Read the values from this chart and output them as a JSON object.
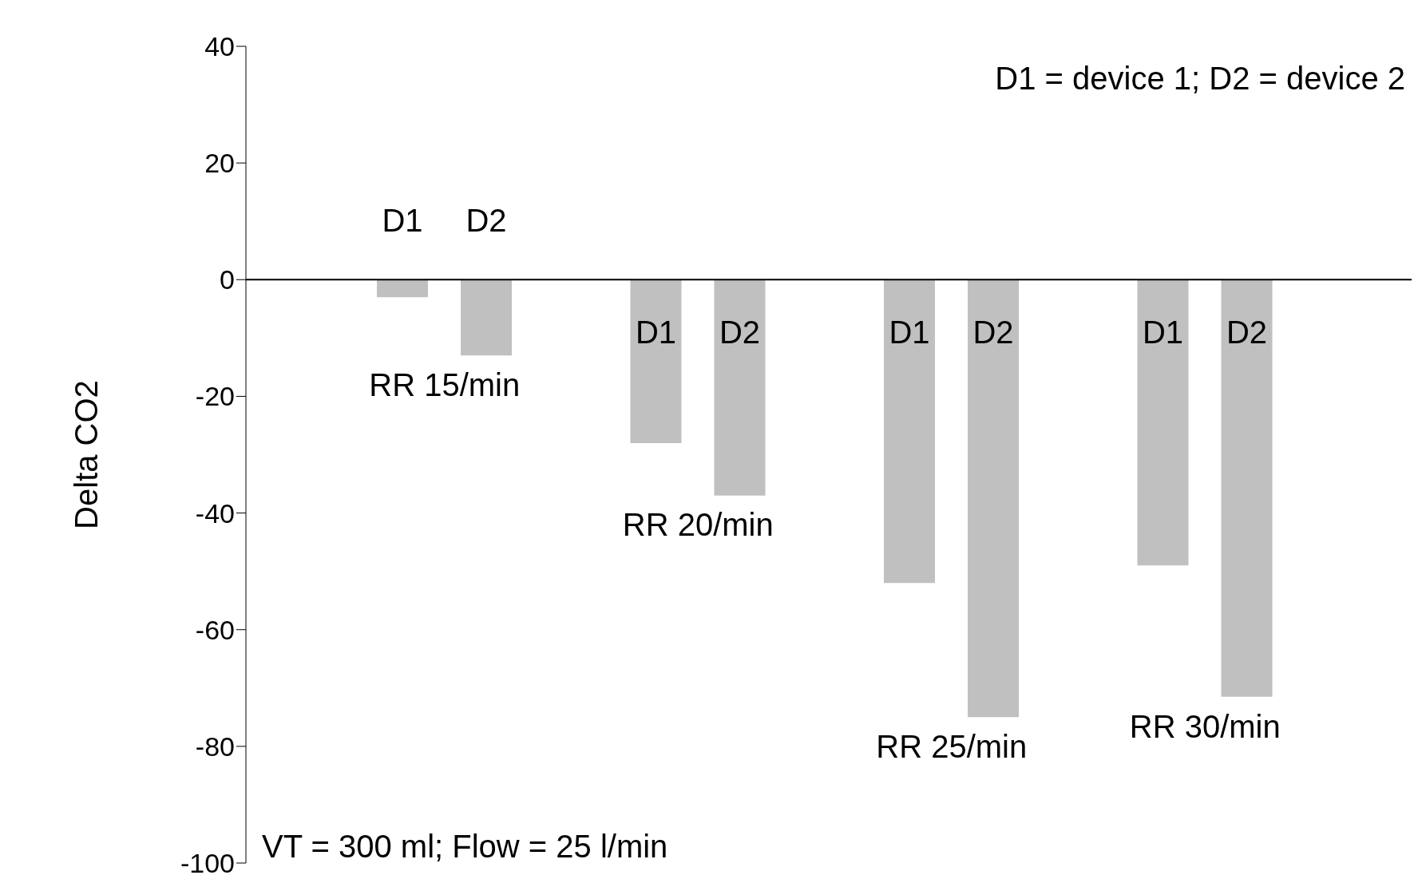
{
  "chart_data": {
    "type": "bar",
    "ylabel": "Delta CO2",
    "categories": [
      "RR 15/min",
      "RR 20/min",
      "RR 25/min",
      "RR 30/min"
    ],
    "series": [
      {
        "name": "D1",
        "color": "#c0c0c0",
        "values": [
          -3,
          -28,
          -52,
          -49
        ]
      },
      {
        "name": "D2",
        "color": "#c0c0c0",
        "values": [
          -13,
          -37,
          -75,
          -71.5
        ]
      }
    ],
    "ylim": [
      -100,
      40
    ],
    "yticks": [
      -100,
      -80,
      -60,
      -40,
      -20,
      0,
      20,
      40
    ],
    "legend": false,
    "annotations": [
      "D1 = device 1; D2 = device 2",
      "VT = 300 ml; Flow = 25 l/min"
    ]
  }
}
